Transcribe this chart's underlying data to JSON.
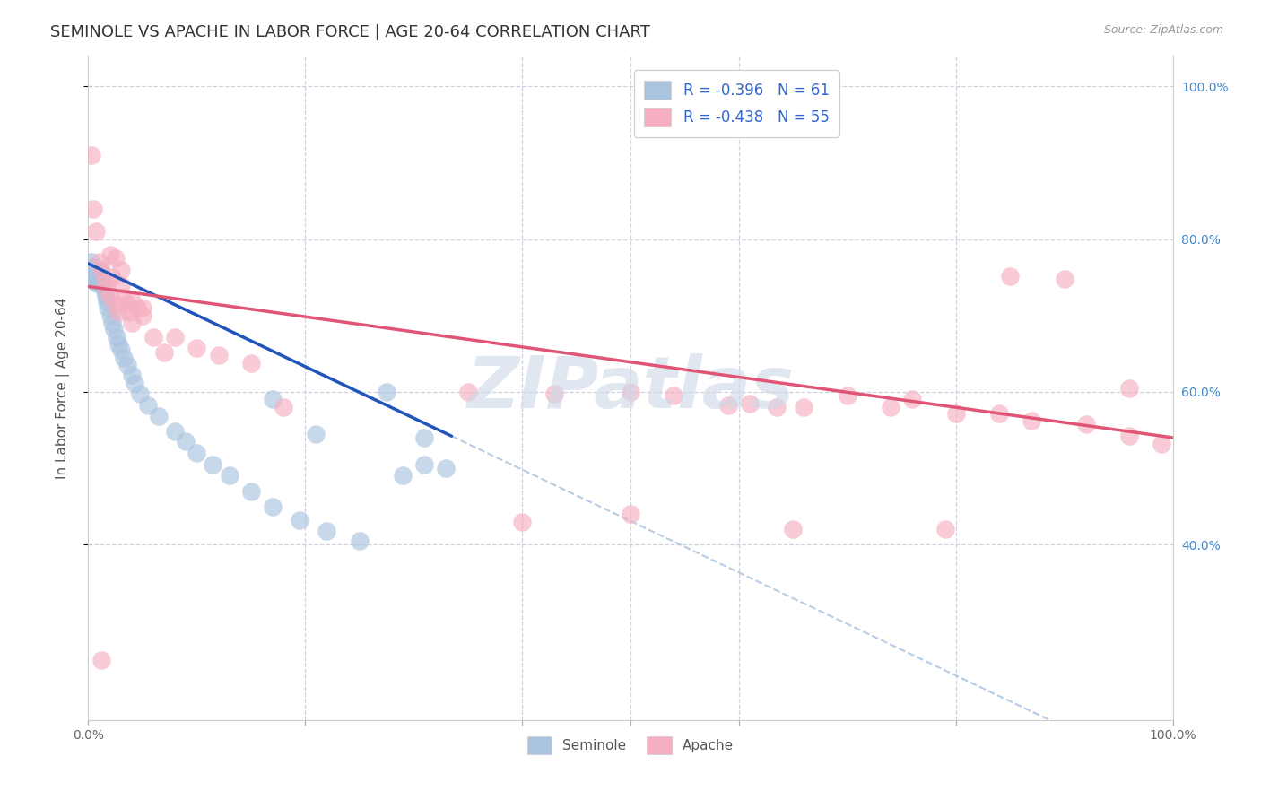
{
  "title": "SEMINOLE VS APACHE IN LABOR FORCE | AGE 20-64 CORRELATION CHART",
  "source": "Source: ZipAtlas.com",
  "ylabel": "In Labor Force | Age 20-64",
  "xlim": [
    0.0,
    1.0
  ],
  "ylim": [
    0.17,
    1.04
  ],
  "y_ticks": [
    0.4,
    0.6,
    0.8,
    1.0
  ],
  "seminole_R": -0.396,
  "seminole_N": 61,
  "apache_R": -0.438,
  "apache_N": 55,
  "blue_color": "#aac4e0",
  "pink_color": "#f5afc0",
  "blue_line_color": "#2255bb",
  "pink_line_color": "#e05575",
  "blue_dash_color": "#aac4e0",
  "background_color": "#ffffff",
  "grid_color": "#d0d0e0",
  "title_fontsize": 13,
  "axis_fontsize": 11,
  "tick_fontsize": 10,
  "watermark": "ZIPatlas",
  "watermark_color": "#ccd8e8",
  "seminole_x": [
    0.001,
    0.002,
    0.003,
    0.003,
    0.004,
    0.004,
    0.005,
    0.005,
    0.006,
    0.006,
    0.007,
    0.007,
    0.007,
    0.008,
    0.008,
    0.008,
    0.009,
    0.009,
    0.01,
    0.01,
    0.01,
    0.011,
    0.011,
    0.012,
    0.012,
    0.013,
    0.014,
    0.015,
    0.016,
    0.017,
    0.018,
    0.02,
    0.022,
    0.024,
    0.026,
    0.028,
    0.03,
    0.033,
    0.036,
    0.04,
    0.043,
    0.048,
    0.055,
    0.065,
    0.08,
    0.09,
    0.1,
    0.115,
    0.13,
    0.15,
    0.17,
    0.195,
    0.22,
    0.25,
    0.275,
    0.31,
    0.33,
    0.17,
    0.21,
    0.29,
    0.31
  ],
  "seminole_y": [
    0.76,
    0.755,
    0.75,
    0.77,
    0.748,
    0.762,
    0.755,
    0.745,
    0.75,
    0.76,
    0.755,
    0.748,
    0.762,
    0.75,
    0.758,
    0.742,
    0.755,
    0.748,
    0.752,
    0.742,
    0.76,
    0.75,
    0.758,
    0.748,
    0.755,
    0.745,
    0.738,
    0.732,
    0.725,
    0.718,
    0.71,
    0.7,
    0.69,
    0.682,
    0.672,
    0.662,
    0.655,
    0.645,
    0.635,
    0.622,
    0.612,
    0.598,
    0.582,
    0.568,
    0.548,
    0.535,
    0.52,
    0.505,
    0.49,
    0.47,
    0.45,
    0.432,
    0.418,
    0.405,
    0.6,
    0.505,
    0.5,
    0.59,
    0.545,
    0.49,
    0.54
  ],
  "apache_x": [
    0.003,
    0.005,
    0.007,
    0.01,
    0.012,
    0.015,
    0.017,
    0.02,
    0.022,
    0.025,
    0.028,
    0.03,
    0.033,
    0.035,
    0.038,
    0.04,
    0.045,
    0.05,
    0.06,
    0.07,
    0.08,
    0.1,
    0.12,
    0.15,
    0.18,
    0.02,
    0.025,
    0.03,
    0.04,
    0.05,
    0.35,
    0.43,
    0.5,
    0.54,
    0.59,
    0.61,
    0.635,
    0.66,
    0.7,
    0.74,
    0.76,
    0.8,
    0.84,
    0.87,
    0.92,
    0.96,
    0.99,
    0.85,
    0.9,
    0.96,
    0.4,
    0.5,
    0.65,
    0.79,
    0.012
  ],
  "apache_y": [
    0.91,
    0.84,
    0.81,
    0.77,
    0.76,
    0.745,
    0.735,
    0.725,
    0.75,
    0.715,
    0.705,
    0.74,
    0.725,
    0.715,
    0.705,
    0.69,
    0.71,
    0.7,
    0.672,
    0.652,
    0.672,
    0.658,
    0.648,
    0.638,
    0.58,
    0.78,
    0.775,
    0.76,
    0.72,
    0.71,
    0.6,
    0.598,
    0.6,
    0.595,
    0.582,
    0.585,
    0.58,
    0.58,
    0.595,
    0.58,
    0.59,
    0.572,
    0.572,
    0.562,
    0.558,
    0.542,
    0.532,
    0.752,
    0.748,
    0.605,
    0.43,
    0.44,
    0.42,
    0.42,
    0.248
  ],
  "sem_line_x0": 0.0,
  "sem_line_x1": 0.335,
  "sem_line_y0": 0.768,
  "sem_line_y1": 0.542,
  "apa_line_x0": 0.0,
  "apa_line_x1": 1.0,
  "apa_line_y0": 0.738,
  "apa_line_y1": 0.54
}
